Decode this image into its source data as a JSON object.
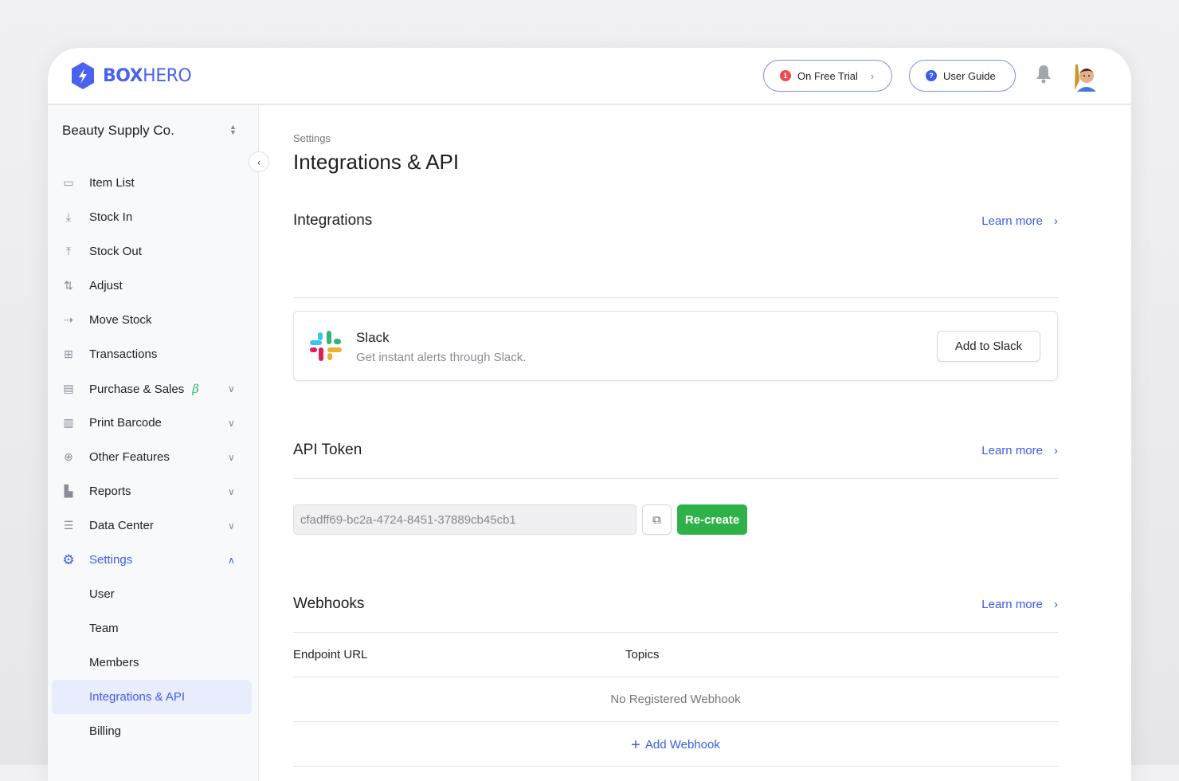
{
  "header": {
    "brand_bold": "BOX",
    "brand_light": "HERO",
    "trial": {
      "badge": "1",
      "label": "On Free Trial"
    },
    "guide": {
      "badge": "?",
      "label": "User Guide"
    }
  },
  "sidebar": {
    "org": "Beauty Supply Co.",
    "items": [
      {
        "label": "Item List",
        "icon": "box-icon"
      },
      {
        "label": "Stock In",
        "icon": "arrow-down-icon"
      },
      {
        "label": "Stock Out",
        "icon": "arrow-up-icon"
      },
      {
        "label": "Adjust",
        "icon": "swap-vertical-icon"
      },
      {
        "label": "Move Stock",
        "icon": "arrow-right-icon"
      },
      {
        "label": "Transactions",
        "icon": "transactions-icon"
      },
      {
        "label": "Purchase & Sales",
        "icon": "document-icon",
        "badge": "β"
      },
      {
        "label": "Print Barcode",
        "icon": "barcode-icon"
      },
      {
        "label": "Other Features",
        "icon": "plus-circle-icon"
      },
      {
        "label": "Reports",
        "icon": "chart-icon"
      },
      {
        "label": "Data Center",
        "icon": "database-icon"
      },
      {
        "label": "Settings",
        "icon": "gear-icon"
      }
    ],
    "settings_sub": [
      "User",
      "Team",
      "Members",
      "Integrations & API",
      "Billing"
    ]
  },
  "main": {
    "breadcrumb": "Settings",
    "title": "Integrations & API",
    "integrations": {
      "heading": "Integrations",
      "learn_more": "Learn more",
      "slack": {
        "name": "Slack",
        "desc": "Get instant alerts through Slack.",
        "button": "Add to Slack"
      }
    },
    "api": {
      "heading": "API Token",
      "learn_more": "Learn more",
      "token": "cfadff69-bc2a-4724-8451-37889cb45cb1",
      "recreate": "Re-create"
    },
    "webhooks": {
      "heading": "Webhooks",
      "learn_more": "Learn more",
      "columns": [
        "Endpoint URL",
        "Topics"
      ],
      "empty": "No Registered Webhook",
      "add": "Add Webhook"
    }
  },
  "colors": {
    "accent": "#3d5cf0",
    "green": "#2fb14a"
  }
}
